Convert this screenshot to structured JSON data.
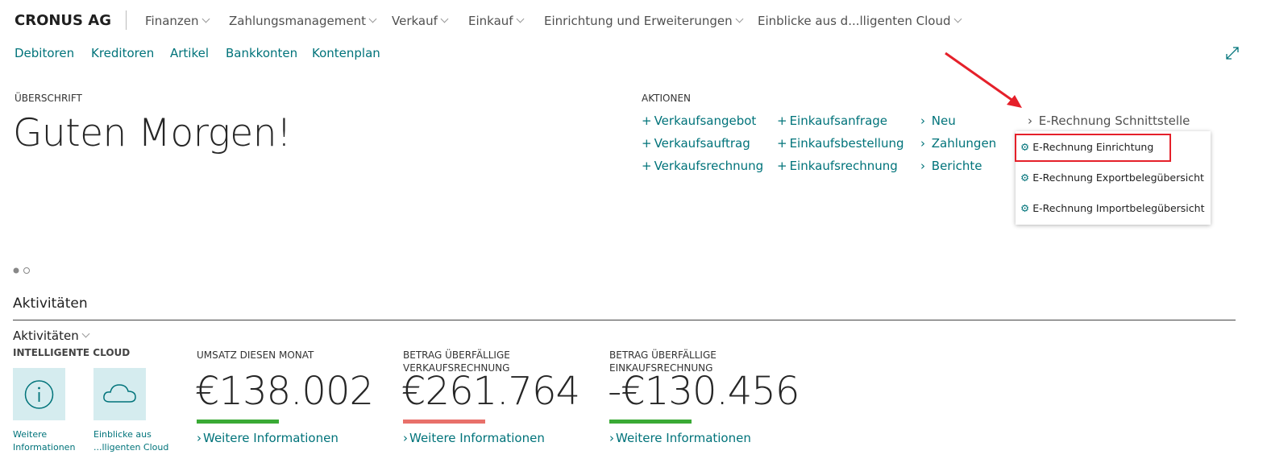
{
  "header": {
    "company": "CRONUS AG",
    "menus": [
      "Finanzen",
      "Zahlungsmanagement",
      "Verkauf",
      "Einkauf",
      "Einrichtung und Erweiterungen",
      "Einblicke aus d...lligenten Cloud"
    ]
  },
  "nav_links": [
    "Debitoren",
    "Kreditoren",
    "Artikel",
    "Bankkonten",
    "Kontenplan"
  ],
  "headline": {
    "caption": "ÜBERSCHRIFT",
    "greeting": "Guten Morgen!"
  },
  "actions": {
    "caption": "AKTIONEN",
    "columns": [
      [
        "Verkaufsangebot",
        "Verkaufsauftrag",
        "Verkaufsrechnung"
      ],
      [
        "Einkaufsanfrage",
        "Einkaufsbestellung",
        "Einkaufsrechnung"
      ]
    ],
    "groups": [
      "Neu",
      "Zahlungen",
      "Berichte"
    ],
    "expanded_group": "E-Rechnung Schnittstelle",
    "submenu": [
      "E-Rechnung Einrichtung",
      "E-Rechnung Exportbelegübersicht",
      "E-Rechnung Importbelegübersicht"
    ]
  },
  "activities": {
    "title": "Aktivitäten",
    "group": "Aktivitäten",
    "cloud_caption": "INTELLIGENTE CLOUD",
    "tiles": [
      "Weitere Informationen",
      "Einblicke aus ...lligenten Cloud"
    ],
    "kpis": [
      {
        "caption": "UMSATZ DIESEN MONAT",
        "value": "€138.002",
        "color": "#3aaa35",
        "link": "Weitere Informationen"
      },
      {
        "caption": "BETRAG ÜBERFÄLLIGE VERKAUFSRECHNUNG",
        "value": "€261.764",
        "color": "#e8706a",
        "link": "Weitere Informationen"
      },
      {
        "caption": "BETRAG ÜBERFÄLLIGE EINKAUFSRECHNUNG",
        "value": "-€130.456",
        "color": "#3aaa35",
        "link": "Weitere Informationen"
      }
    ]
  }
}
